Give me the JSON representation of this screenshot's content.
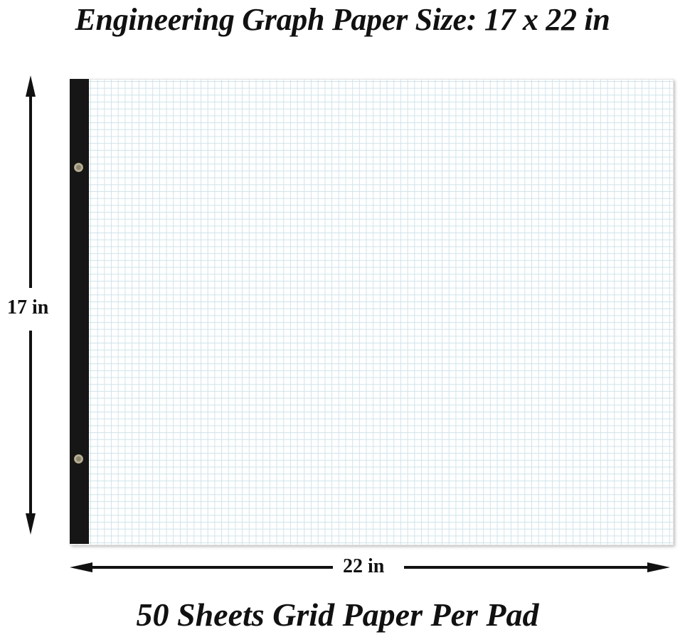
{
  "title": "Engineering Graph Paper Size: 17 x 22 in",
  "height_label": "17 in",
  "width_label": "22 in",
  "footer": "50 Sheets Grid Paper Per Pad",
  "colors": {
    "grid": "#cfe3ea",
    "binding": "#161616",
    "text": "#111111"
  }
}
